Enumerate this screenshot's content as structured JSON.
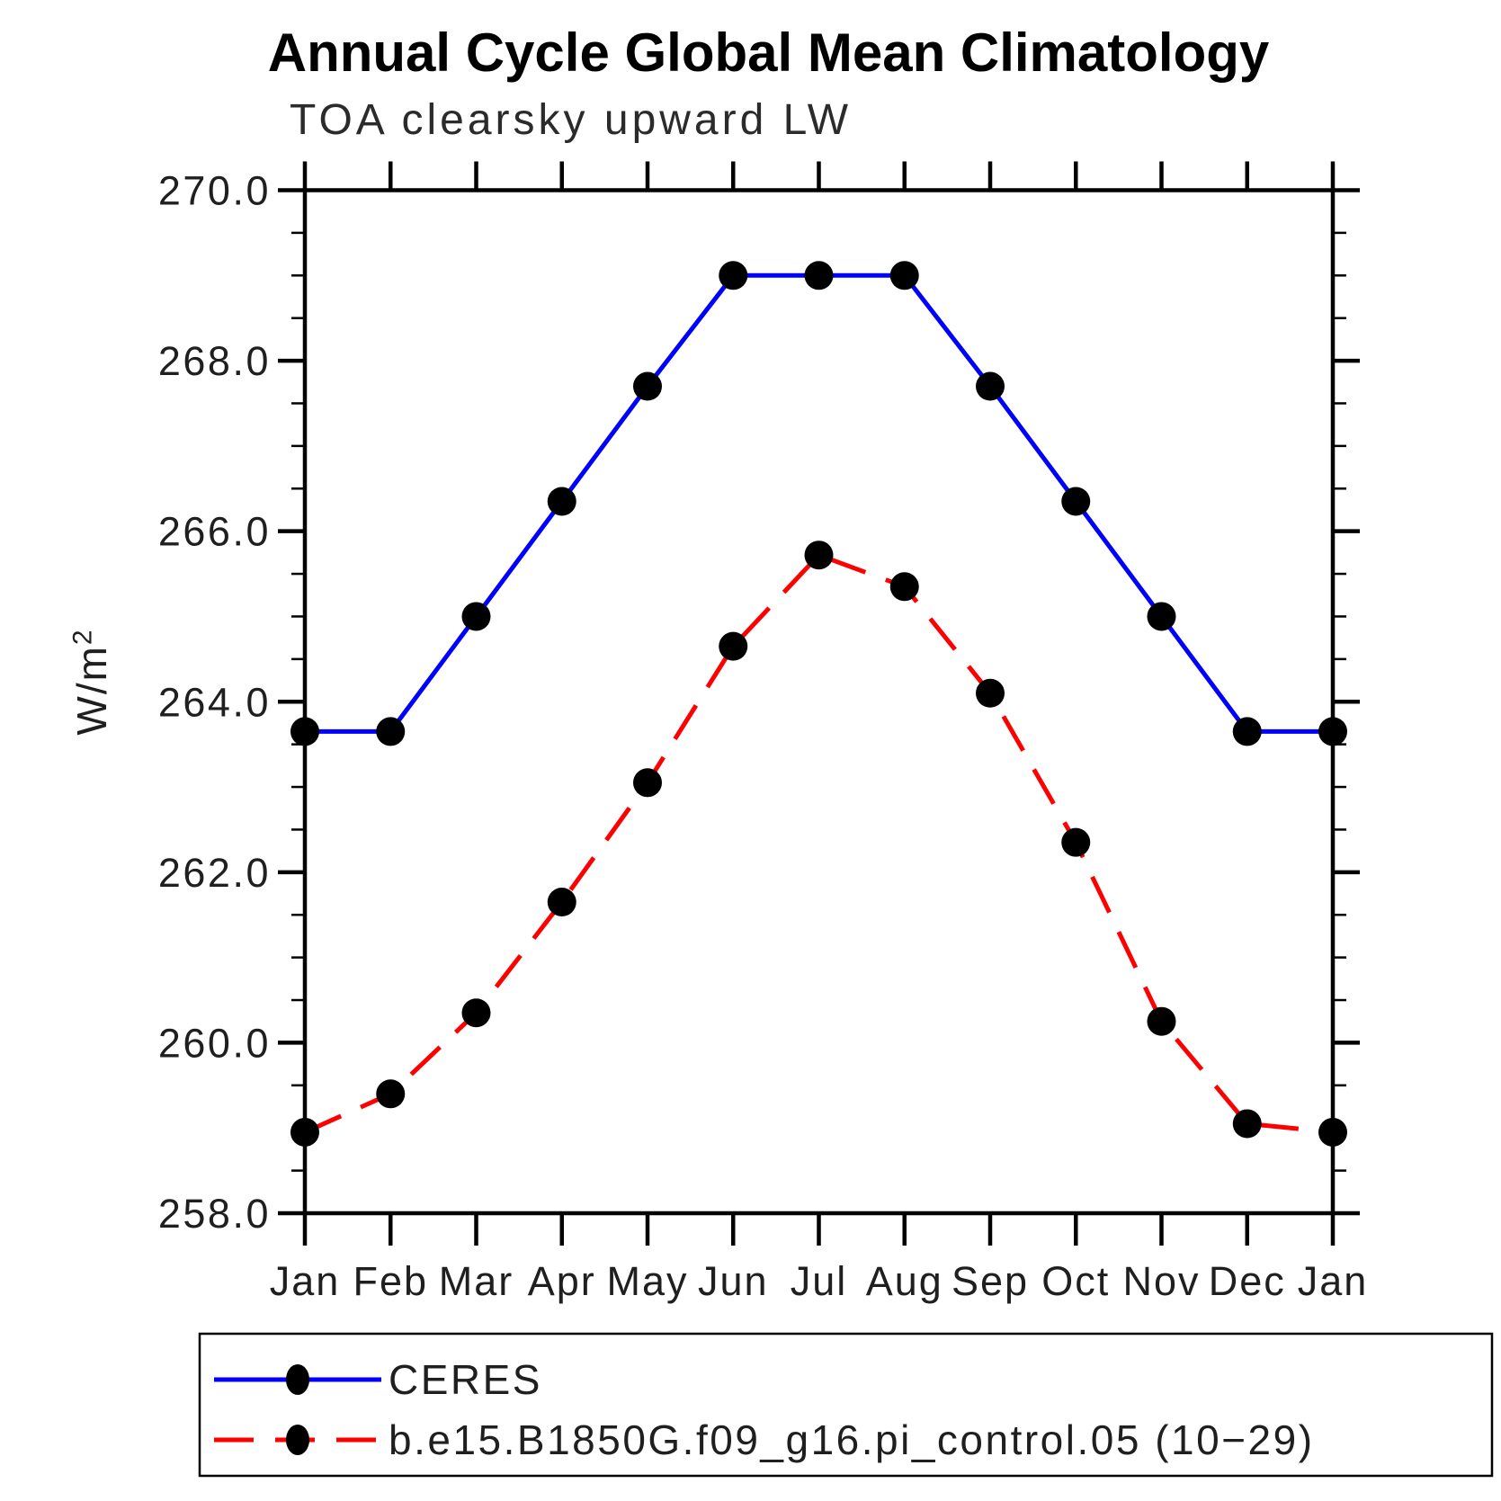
{
  "chart_data": {
    "type": "line",
    "title": "Annual Cycle Global Mean Climatology",
    "subtitle": "TOA clearsky upward LW",
    "ylabel": "W/m²",
    "ylabel_main": "W/m",
    "ylabel_sup": "2",
    "ylim": [
      258.0,
      270.0
    ],
    "y_major_step": 2.0,
    "y_minor_step": 0.5,
    "y_ticks": [
      "270.0",
      "268.0",
      "266.0",
      "264.0",
      "262.0",
      "260.0",
      "258.0"
    ],
    "grid": false,
    "legend_position": "bottom-left-box",
    "x": [
      "Jan",
      "Feb",
      "Mar",
      "Apr",
      "May",
      "Jun",
      "Jul",
      "Aug",
      "Sep",
      "Oct",
      "Nov",
      "Dec",
      "Jan"
    ],
    "series": [
      {
        "name": "CERES",
        "color": "#0000ff",
        "line_style": "solid",
        "marker": "black-filled-circle",
        "values": [
          263.65,
          263.65,
          265.0,
          266.35,
          267.7,
          269.0,
          269.0,
          269.0,
          267.7,
          266.35,
          265.0,
          263.65,
          263.65
        ]
      },
      {
        "name": "b.e15.B1850G.f09_g16.pi_control.05 (10−29)",
        "color": "#ff0000",
        "line_style": "dashed",
        "marker": "black-filled-circle",
        "values": [
          258.95,
          259.4,
          260.35,
          261.65,
          263.05,
          264.65,
          265.72,
          265.35,
          264.1,
          262.35,
          260.25,
          259.05,
          258.95
        ]
      }
    ],
    "colors": {
      "frame": "#000000",
      "marker": "#000000",
      "text": "#1f1f1f",
      "title": "#000000",
      "background": "#ffffff"
    }
  }
}
